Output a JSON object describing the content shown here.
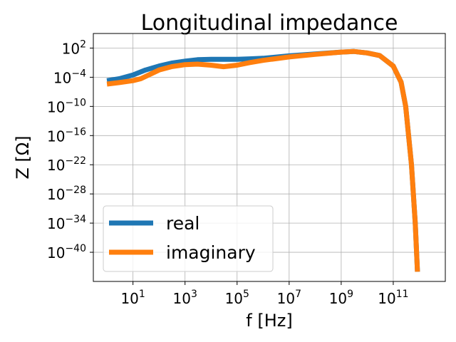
{
  "chart_data": {
    "type": "line",
    "title": "Longitudinal impedance",
    "xlabel": "f [Hz]",
    "ylabel": "Z [Ω]",
    "x_scale": "log",
    "y_scale": "log",
    "xlim": [
      0.3,
      10000000000000.0
    ],
    "ylim": [
      1e-46,
      100000.0
    ],
    "x_ticks": [
      {
        "value": 10,
        "base": "10",
        "exp": "1"
      },
      {
        "value": 1000,
        "base": "10",
        "exp": "3"
      },
      {
        "value": 100000,
        "base": "10",
        "exp": "5"
      },
      {
        "value": 10000000,
        "base": "10",
        "exp": "7"
      },
      {
        "value": 1000000000,
        "base": "10",
        "exp": "9"
      },
      {
        "value": 100000000000,
        "base": "10",
        "exp": "11"
      }
    ],
    "y_ticks": [
      {
        "value": 100.0,
        "base": "10",
        "exp": "2"
      },
      {
        "value": 0.0001,
        "base": "10",
        "exp": "−4"
      },
      {
        "value": 1e-10,
        "base": "10",
        "exp": "−10"
      },
      {
        "value": 1e-16,
        "base": "10",
        "exp": "−16"
      },
      {
        "value": 1e-22,
        "base": "10",
        "exp": "−22"
      },
      {
        "value": 1e-28,
        "base": "10",
        "exp": "−28"
      },
      {
        "value": 1e-34,
        "base": "10",
        "exp": "−34"
      },
      {
        "value": 1e-40,
        "base": "10",
        "exp": "−40"
      }
    ],
    "grid": true,
    "legend_position": "lower-left",
    "series": [
      {
        "name": "real",
        "color": "#1f77b4",
        "points": [
          [
            1,
            2e-05
          ],
          [
            3,
            5e-05
          ],
          [
            10,
            0.0003
          ],
          [
            30,
            0.003
          ],
          [
            100,
            0.02
          ],
          [
            300,
            0.08
          ],
          [
            1000,
            0.2
          ],
          [
            3000,
            0.4
          ],
          [
            10000,
            0.5
          ],
          [
            30000,
            0.5
          ],
          [
            100000,
            0.5
          ],
          [
            300000,
            0.6
          ],
          [
            1000000,
            0.8
          ],
          [
            10000000,
            2.5
          ],
          [
            100000000,
            6
          ],
          [
            1000000000,
            15
          ],
          [
            3000000000,
            20
          ],
          [
            10000000000,
            10
          ],
          [
            30000000000,
            3
          ],
          [
            100000000000,
            0.02
          ],
          [
            200000000000,
            1e-05
          ],
          [
            300000000000,
            1e-10
          ],
          [
            500000000000,
            1e-22
          ],
          [
            700000000000,
            1e-34
          ],
          [
            850000000000,
            1e-44
          ]
        ]
      },
      {
        "name": "imaginary",
        "color": "#ff7f0e",
        "points": [
          [
            1,
            4e-06
          ],
          [
            3,
            8e-06
          ],
          [
            10,
            2e-05
          ],
          [
            20,
            5e-05
          ],
          [
            50,
            0.0005
          ],
          [
            100,
            0.003
          ],
          [
            300,
            0.015
          ],
          [
            1000,
            0.04
          ],
          [
            3000,
            0.05
          ],
          [
            10000,
            0.03
          ],
          [
            30000,
            0.015
          ],
          [
            100000,
            0.03
          ],
          [
            300000,
            0.1
          ],
          [
            1000000,
            0.3
          ],
          [
            10000000,
            1.5
          ],
          [
            100000000,
            5
          ],
          [
            1000000000,
            15
          ],
          [
            3000000000,
            20
          ],
          [
            10000000000,
            10
          ],
          [
            30000000000,
            3
          ],
          [
            100000000000,
            0.02
          ],
          [
            200000000000,
            1e-05
          ],
          [
            300000000000,
            1e-10
          ],
          [
            500000000000,
            1e-22
          ],
          [
            700000000000,
            1e-34
          ],
          [
            850000000000,
            1e-44
          ]
        ]
      }
    ]
  }
}
